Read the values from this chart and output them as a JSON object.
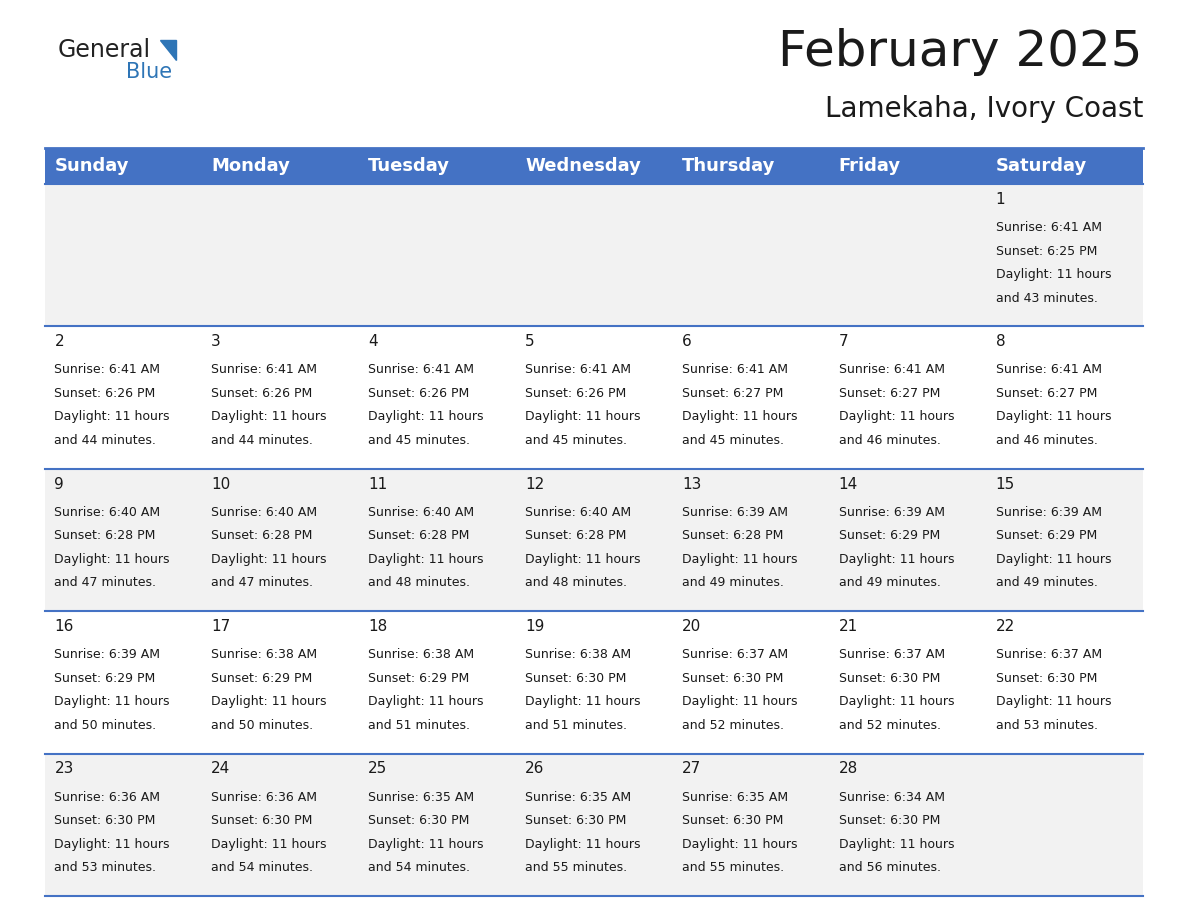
{
  "title": "February 2025",
  "subtitle": "Lamekaha, Ivory Coast",
  "header_bg_color": "#4472C4",
  "header_text_color": "#FFFFFF",
  "header_font_size": 13,
  "day_names": [
    "Sunday",
    "Monday",
    "Tuesday",
    "Wednesday",
    "Thursday",
    "Friday",
    "Saturday"
  ],
  "title_font_size": 36,
  "subtitle_font_size": 20,
  "background_color": "#FFFFFF",
  "cell_bg_row0": "#F2F2F2",
  "cell_bg_row1": "#FFFFFF",
  "cell_bg_row2": "#F2F2F2",
  "cell_bg_row3": "#FFFFFF",
  "cell_bg_row4": "#F2F2F2",
  "grid_color": "#4472C4",
  "text_color": "#1a1a1a",
  "day_num_font_size": 11,
  "cell_text_font_size": 9,
  "days": [
    {
      "day": 1,
      "col": 6,
      "row": 0,
      "sunrise": "6:41 AM",
      "sunset": "6:25 PM",
      "daylight": "11 hours",
      "daylight2": "and 43 minutes."
    },
    {
      "day": 2,
      "col": 0,
      "row": 1,
      "sunrise": "6:41 AM",
      "sunset": "6:26 PM",
      "daylight": "11 hours",
      "daylight2": "and 44 minutes."
    },
    {
      "day": 3,
      "col": 1,
      "row": 1,
      "sunrise": "6:41 AM",
      "sunset": "6:26 PM",
      "daylight": "11 hours",
      "daylight2": "and 44 minutes."
    },
    {
      "day": 4,
      "col": 2,
      "row": 1,
      "sunrise": "6:41 AM",
      "sunset": "6:26 PM",
      "daylight": "11 hours",
      "daylight2": "and 45 minutes."
    },
    {
      "day": 5,
      "col": 3,
      "row": 1,
      "sunrise": "6:41 AM",
      "sunset": "6:26 PM",
      "daylight": "11 hours",
      "daylight2": "and 45 minutes."
    },
    {
      "day": 6,
      "col": 4,
      "row": 1,
      "sunrise": "6:41 AM",
      "sunset": "6:27 PM",
      "daylight": "11 hours",
      "daylight2": "and 45 minutes."
    },
    {
      "day": 7,
      "col": 5,
      "row": 1,
      "sunrise": "6:41 AM",
      "sunset": "6:27 PM",
      "daylight": "11 hours",
      "daylight2": "and 46 minutes."
    },
    {
      "day": 8,
      "col": 6,
      "row": 1,
      "sunrise": "6:41 AM",
      "sunset": "6:27 PM",
      "daylight": "11 hours",
      "daylight2": "and 46 minutes."
    },
    {
      "day": 9,
      "col": 0,
      "row": 2,
      "sunrise": "6:40 AM",
      "sunset": "6:28 PM",
      "daylight": "11 hours",
      "daylight2": "and 47 minutes."
    },
    {
      "day": 10,
      "col": 1,
      "row": 2,
      "sunrise": "6:40 AM",
      "sunset": "6:28 PM",
      "daylight": "11 hours",
      "daylight2": "and 47 minutes."
    },
    {
      "day": 11,
      "col": 2,
      "row": 2,
      "sunrise": "6:40 AM",
      "sunset": "6:28 PM",
      "daylight": "11 hours",
      "daylight2": "and 48 minutes."
    },
    {
      "day": 12,
      "col": 3,
      "row": 2,
      "sunrise": "6:40 AM",
      "sunset": "6:28 PM",
      "daylight": "11 hours",
      "daylight2": "and 48 minutes."
    },
    {
      "day": 13,
      "col": 4,
      "row": 2,
      "sunrise": "6:39 AM",
      "sunset": "6:28 PM",
      "daylight": "11 hours",
      "daylight2": "and 49 minutes."
    },
    {
      "day": 14,
      "col": 5,
      "row": 2,
      "sunrise": "6:39 AM",
      "sunset": "6:29 PM",
      "daylight": "11 hours",
      "daylight2": "and 49 minutes."
    },
    {
      "day": 15,
      "col": 6,
      "row": 2,
      "sunrise": "6:39 AM",
      "sunset": "6:29 PM",
      "daylight": "11 hours",
      "daylight2": "and 49 minutes."
    },
    {
      "day": 16,
      "col": 0,
      "row": 3,
      "sunrise": "6:39 AM",
      "sunset": "6:29 PM",
      "daylight": "11 hours",
      "daylight2": "and 50 minutes."
    },
    {
      "day": 17,
      "col": 1,
      "row": 3,
      "sunrise": "6:38 AM",
      "sunset": "6:29 PM",
      "daylight": "11 hours",
      "daylight2": "and 50 minutes."
    },
    {
      "day": 18,
      "col": 2,
      "row": 3,
      "sunrise": "6:38 AM",
      "sunset": "6:29 PM",
      "daylight": "11 hours",
      "daylight2": "and 51 minutes."
    },
    {
      "day": 19,
      "col": 3,
      "row": 3,
      "sunrise": "6:38 AM",
      "sunset": "6:30 PM",
      "daylight": "11 hours",
      "daylight2": "and 51 minutes."
    },
    {
      "day": 20,
      "col": 4,
      "row": 3,
      "sunrise": "6:37 AM",
      "sunset": "6:30 PM",
      "daylight": "11 hours",
      "daylight2": "and 52 minutes."
    },
    {
      "day": 21,
      "col": 5,
      "row": 3,
      "sunrise": "6:37 AM",
      "sunset": "6:30 PM",
      "daylight": "11 hours",
      "daylight2": "and 52 minutes."
    },
    {
      "day": 22,
      "col": 6,
      "row": 3,
      "sunrise": "6:37 AM",
      "sunset": "6:30 PM",
      "daylight": "11 hours",
      "daylight2": "and 53 minutes."
    },
    {
      "day": 23,
      "col": 0,
      "row": 4,
      "sunrise": "6:36 AM",
      "sunset": "6:30 PM",
      "daylight": "11 hours",
      "daylight2": "and 53 minutes."
    },
    {
      "day": 24,
      "col": 1,
      "row": 4,
      "sunrise": "6:36 AM",
      "sunset": "6:30 PM",
      "daylight": "11 hours",
      "daylight2": "and 54 minutes."
    },
    {
      "day": 25,
      "col": 2,
      "row": 4,
      "sunrise": "6:35 AM",
      "sunset": "6:30 PM",
      "daylight": "11 hours",
      "daylight2": "and 54 minutes."
    },
    {
      "day": 26,
      "col": 3,
      "row": 4,
      "sunrise": "6:35 AM",
      "sunset": "6:30 PM",
      "daylight": "11 hours",
      "daylight2": "and 55 minutes."
    },
    {
      "day": 27,
      "col": 4,
      "row": 4,
      "sunrise": "6:35 AM",
      "sunset": "6:30 PM",
      "daylight": "11 hours",
      "daylight2": "and 55 minutes."
    },
    {
      "day": 28,
      "col": 5,
      "row": 4,
      "sunrise": "6:34 AM",
      "sunset": "6:30 PM",
      "daylight": "11 hours",
      "daylight2": "and 56 minutes."
    }
  ]
}
